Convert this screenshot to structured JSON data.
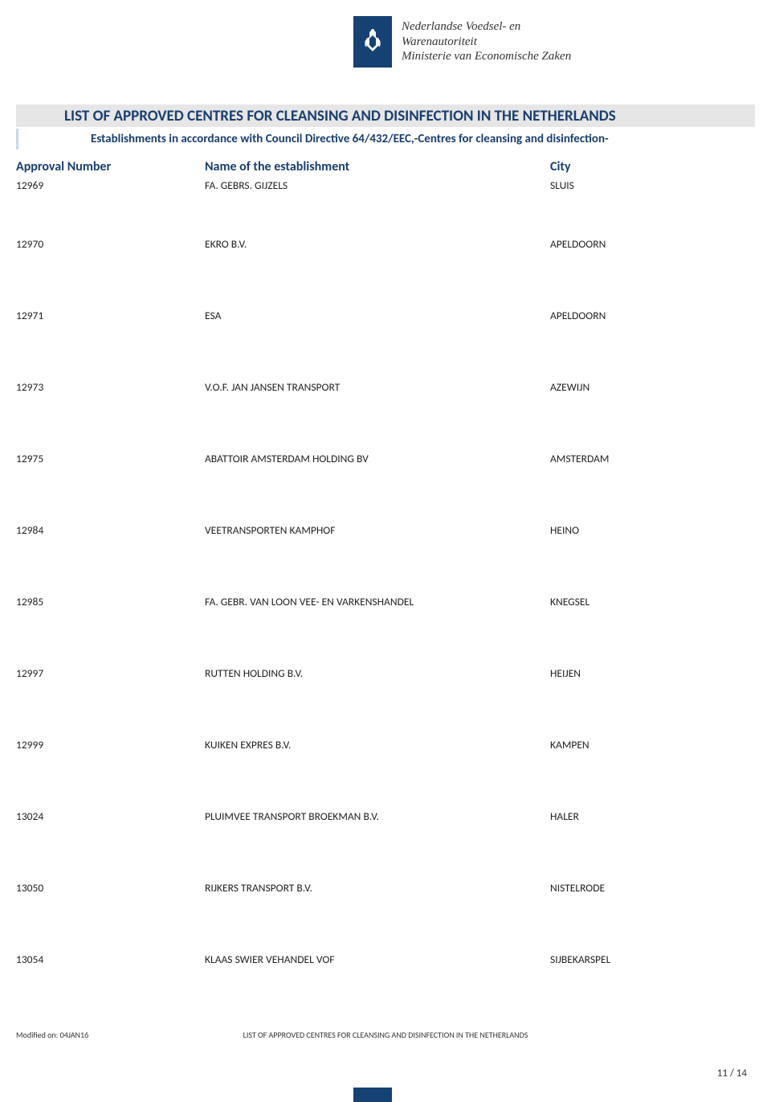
{
  "logo": {
    "org_line1": "Nederlandse Voedsel- en",
    "org_line2": "Warenautoriteit",
    "org_line3": "Ministerie van Economische Zaken",
    "bg_color": "#154273"
  },
  "title": "LIST OF APPROVED CENTRES FOR CLEANSING AND DISINFECTION  IN THE NETHERLANDS",
  "subtitle": "Establishments in accordance with Council Directive 64/432/EEC,-Centres for cleansing and disinfection-",
  "columns": {
    "approval": "Approval Number",
    "name": "Name of the establishment",
    "city": "City"
  },
  "rows": [
    {
      "approval": "12969",
      "name": "FA. GEBRS. GIJZELS",
      "city": "SLUIS"
    },
    {
      "approval": "12970",
      "name": "EKRO B.V.",
      "city": "APELDOORN"
    },
    {
      "approval": "12971",
      "name": "ESA",
      "city": "APELDOORN"
    },
    {
      "approval": "12973",
      "name": "V.O.F. JAN JANSEN TRANSPORT",
      "city": "AZEWIJN"
    },
    {
      "approval": "12975",
      "name": "ABATTOIR AMSTERDAM HOLDING BV",
      "city": "AMSTERDAM"
    },
    {
      "approval": "12984",
      "name": "VEETRANSPORTEN KAMPHOF",
      "city": "HEINO"
    },
    {
      "approval": "12985",
      "name": "FA. GEBR. VAN LOON VEE-  EN VARKENSHANDEL",
      "city": "KNEGSEL"
    },
    {
      "approval": "12997",
      "name": "RUTTEN HOLDING B.V.",
      "city": "HEIJEN"
    },
    {
      "approval": "12999",
      "name": "KUIKEN EXPRES B.V.",
      "city": "KAMPEN"
    },
    {
      "approval": "13024",
      "name": "PLUIMVEE TRANSPORT BROEKMAN B.V.",
      "city": "HALER"
    },
    {
      "approval": "13050",
      "name": "RIJKERS TRANSPORT B.V.",
      "city": "NISTELRODE"
    },
    {
      "approval": "13054",
      "name": "KLAAS SWIER VEHANDEL VOF",
      "city": "SIJBEKARSPEL"
    }
  ],
  "footer": {
    "modified": "Modified on: 04JAN16",
    "center": "LIST OF APPROVED CENTRES FOR CLEANSING AND DISINFECTION  IN THE NETHERLANDS",
    "page": "11 / 14"
  },
  "colors": {
    "heading": "#1a3e6e",
    "title_bg": "#e6e6e6",
    "accent": "#154273"
  }
}
